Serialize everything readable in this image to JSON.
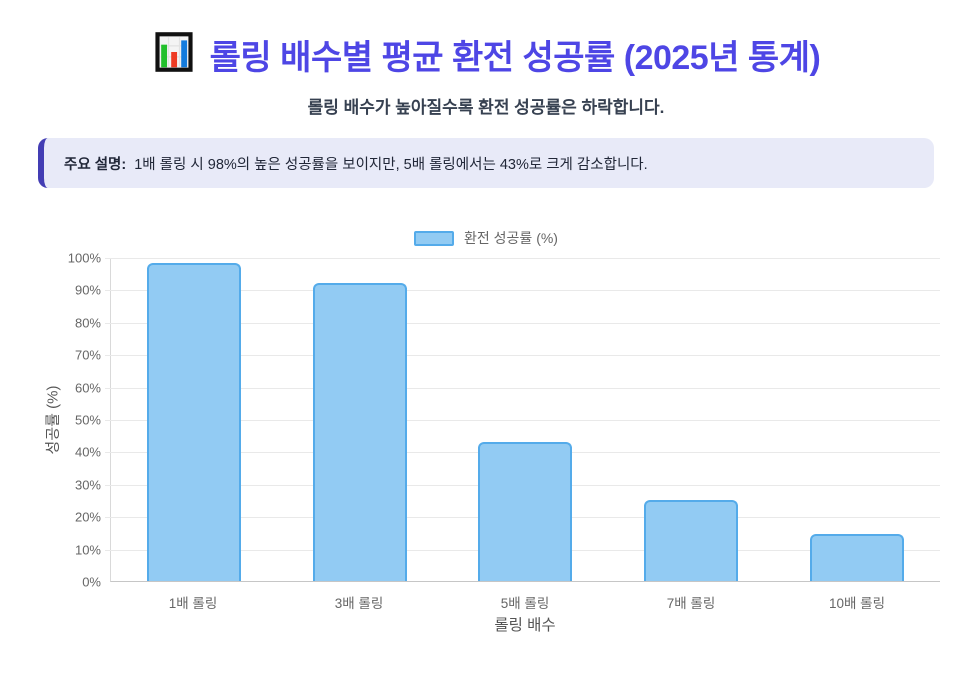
{
  "header": {
    "icon": "bar-chart-icon",
    "title": "롤링 배수별 평균 환전 성공률 (2025년 통계)",
    "subtitle": "롤링 배수가 높아질수록 환전 성공률은 하락합니다."
  },
  "info_box": {
    "label": "주요 설명:",
    "text": " 1배 롤링 시 98%의 높은 성공률을 보이지만, 5배 롤링에서는 43%로 크게 감소합니다."
  },
  "chart_data": {
    "type": "bar",
    "categories": [
      "1배 롤링",
      "3배 롤링",
      "5배 롤링",
      "7배 롤링",
      "10배 롤링"
    ],
    "values": [
      98,
      92,
      43,
      25,
      14.5
    ],
    "legend": {
      "label": "환전 성공률 (%)",
      "position": "top"
    },
    "xlabel": "롤링 배수",
    "ylabel": "성공률 (%)",
    "ylim": [
      0,
      100
    ],
    "ytick_step": 10,
    "ytick_suffix": "%",
    "grid": true
  },
  "colors": {
    "title": "#4e46e5",
    "subtitle": "#374151",
    "info_bg": "#e8eaf8",
    "info_border": "#433db4",
    "bar_fill": "#92cbf3",
    "bar_border": "#54abea",
    "axis_text": "#666666",
    "axis_title": "#555555",
    "grid_line": "#e9e9e9",
    "icon_green": "#22c02c",
    "icon_red": "#ee3b24",
    "icon_blue": "#137bdd"
  }
}
